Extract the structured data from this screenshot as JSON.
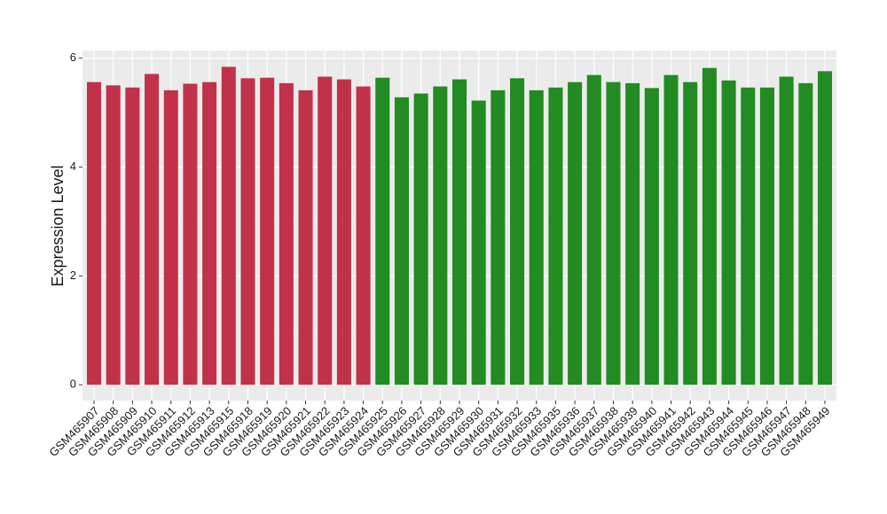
{
  "chart_data": {
    "type": "bar",
    "y_label": "Expression Level",
    "categories": [
      "GSM465907",
      "GSM465908",
      "GSM465909",
      "GSM465910",
      "GSM465911",
      "GSM465912",
      "GSM465913",
      "GSM465915",
      "GSM465918",
      "GSM465919",
      "GSM465920",
      "GSM465921",
      "GSM465922",
      "GSM465923",
      "GSM465924",
      "GSM465925",
      "GSM465926",
      "GSM465927",
      "GSM465928",
      "GSM465929",
      "GSM465930",
      "GSM465931",
      "GSM465932",
      "GSM465933",
      "GSM465935",
      "GSM465936",
      "GSM465937",
      "GSM465938",
      "GSM465939",
      "GSM465940",
      "GSM465941",
      "GSM465942",
      "GSM465943",
      "GSM465944",
      "GSM465945",
      "GSM465946",
      "GSM465947",
      "GSM465948",
      "GSM465949"
    ],
    "values": [
      5.56,
      5.5,
      5.46,
      5.71,
      5.41,
      5.53,
      5.56,
      5.84,
      5.63,
      5.64,
      5.54,
      5.41,
      5.66,
      5.61,
      5.48,
      5.64,
      5.28,
      5.35,
      5.48,
      5.61,
      5.22,
      5.41,
      5.63,
      5.41,
      5.46,
      5.56,
      5.69,
      5.56,
      5.54,
      5.45,
      5.69,
      5.56,
      5.82,
      5.59,
      5.46,
      5.46,
      5.66,
      5.54,
      5.76
    ],
    "colors": [
      "#c1324a",
      "#c1324a",
      "#c1324a",
      "#c1324a",
      "#c1324a",
      "#c1324a",
      "#c1324a",
      "#c1324a",
      "#c1324a",
      "#c1324a",
      "#c1324a",
      "#c1324a",
      "#c1324a",
      "#c1324a",
      "#c1324a",
      "#228b22",
      "#228b22",
      "#228b22",
      "#228b22",
      "#228b22",
      "#228b22",
      "#228b22",
      "#228b22",
      "#228b22",
      "#228b22",
      "#228b22",
      "#228b22",
      "#228b22",
      "#228b22",
      "#228b22",
      "#228b22",
      "#228b22",
      "#228b22",
      "#228b22",
      "#228b22",
      "#228b22",
      "#228b22",
      "#228b22",
      "#228b22"
    ],
    "ylim": [
      -0.29,
      6.14
    ],
    "yticks": [
      0,
      2,
      4,
      6
    ],
    "grid": true
  }
}
